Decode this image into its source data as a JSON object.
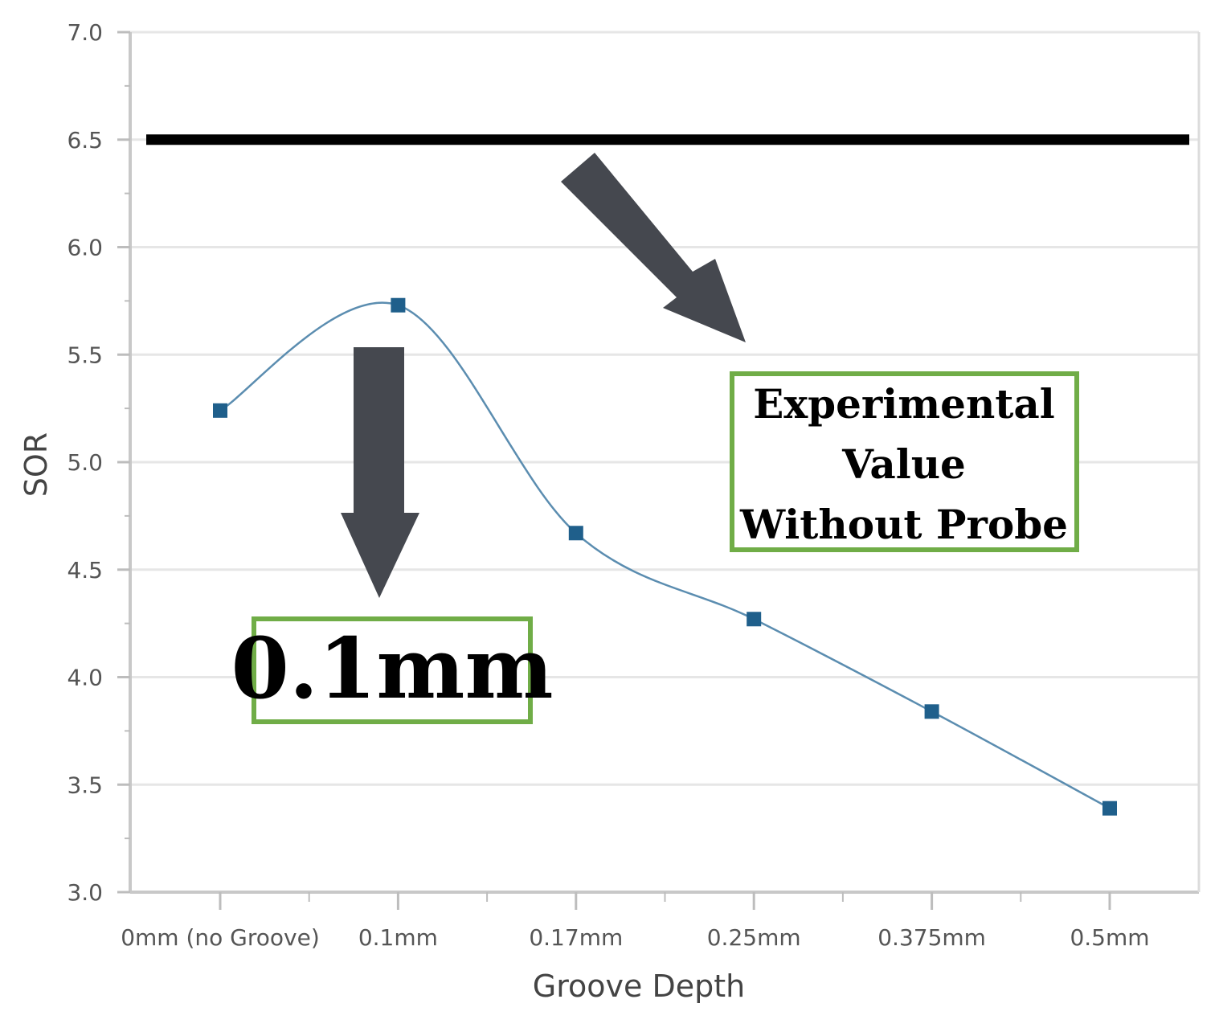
{
  "chart_data": {
    "type": "line",
    "title": "",
    "xlabel": "Groove Depth",
    "ylabel": "SOR",
    "categories": [
      "0mm (no Groove)",
      "0.1mm",
      "0.17mm",
      "0.25mm",
      "0.375mm",
      "0.5mm"
    ],
    "series": [
      {
        "values": [
          5.24,
          5.73,
          4.67,
          4.27,
          3.84,
          3.39
        ],
        "color": "#5b8db0",
        "marker_color": "#1f5f8b"
      }
    ],
    "reference_line": {
      "value": 6.5,
      "color": "#000000"
    },
    "ylim": [
      3.0,
      7.0
    ],
    "yticks": [
      "3.0",
      "3.5",
      "4.0",
      "4.5",
      "5.0",
      "5.5",
      "6.0",
      "6.5",
      "7.0"
    ],
    "grid": true,
    "annotations": {
      "reference": [
        "Experimental",
        "Value",
        "Without Probe"
      ],
      "optimum": "0.1mm"
    },
    "annotation_box_color": "#70ad47",
    "arrow_color": "#45484f"
  }
}
